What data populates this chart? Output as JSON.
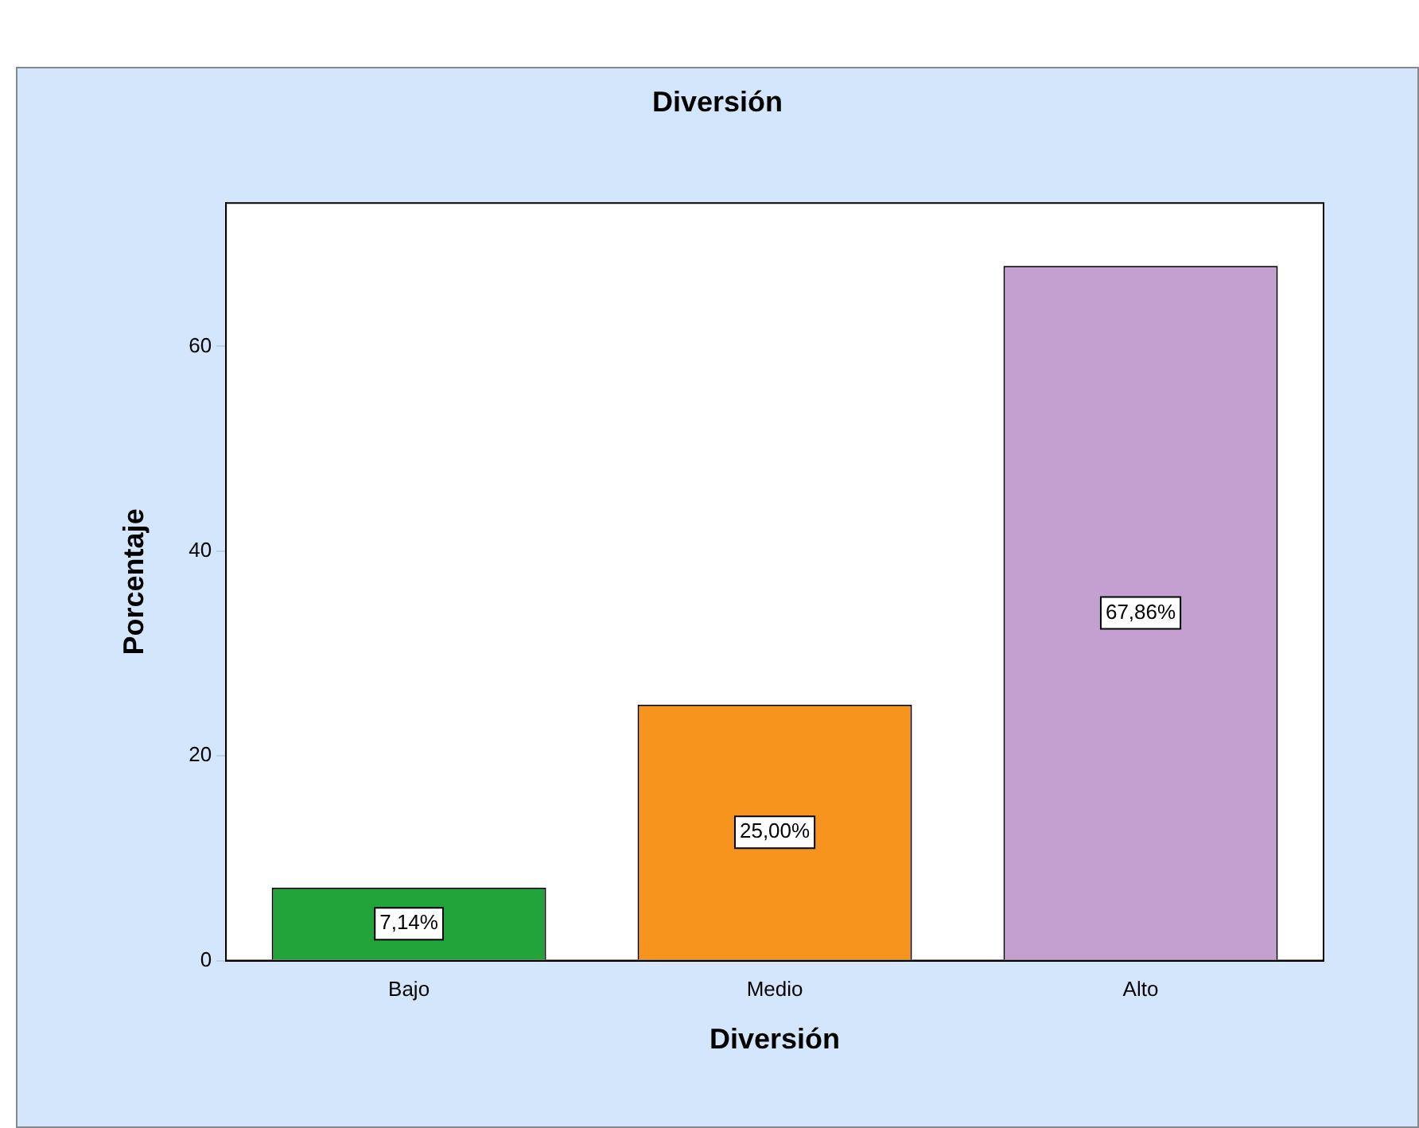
{
  "chart_data": {
    "type": "bar",
    "title": "Diversión",
    "xlabel": "Diversión",
    "ylabel": "Porcentaje",
    "categories": [
      "Bajo",
      "Medio",
      "Alto"
    ],
    "values": [
      7.14,
      25.0,
      67.86
    ],
    "colors": [
      "#22a43a",
      "#f7941d",
      "#c3a0d0"
    ],
    "value_labels": [
      "7,14%",
      "25,00%",
      "67,86%"
    ],
    "ylim": [
      0,
      74
    ],
    "yticks": [
      0,
      20,
      40,
      60
    ],
    "grid": false,
    "legend": false
  }
}
